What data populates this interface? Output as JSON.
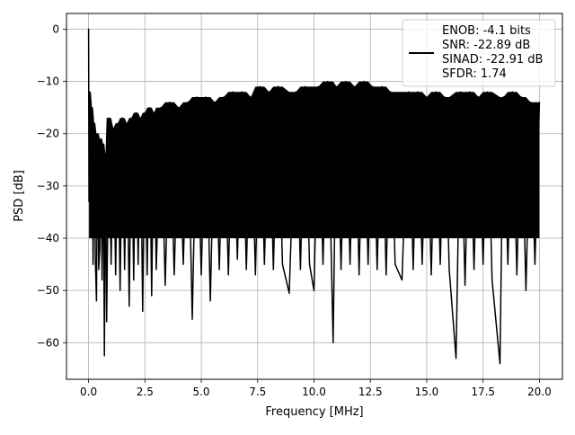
{
  "chart_data": {
    "type": "line",
    "title": "",
    "xlabel": "Frequency [MHz]",
    "ylabel": "PSD [dB]",
    "xlim": [
      -0.98,
      21.02
    ],
    "ylim": [
      -67,
      3
    ],
    "xticks": [
      0.0,
      2.5,
      5.0,
      7.5,
      10.0,
      12.5,
      15.0,
      17.5,
      20.0
    ],
    "xtick_labels": [
      "0.0",
      "2.5",
      "5.0",
      "7.5",
      "10.0",
      "12.5",
      "15.0",
      "17.5",
      "20.0"
    ],
    "yticks": [
      0,
      -10,
      -20,
      -30,
      -40,
      -50,
      -60
    ],
    "ytick_labels": [
      "0",
      "−10",
      "−20",
      "−30",
      "−40",
      "−50",
      "−60"
    ],
    "grid": true,
    "legend_position": "top-right",
    "line_color": "#000000",
    "series": [
      {
        "name": "ENOB: -4.1 bits\nSNR: -22.89 dB\nSINAD: -22.91 dB\nSFDR: 1.74",
        "note_values": "approximate reading of a dense noise spectrum; envelope and notable spikes sampled",
        "x": [
          0.0,
          0.02,
          0.05,
          0.1,
          0.15,
          0.2,
          0.25,
          0.3,
          0.35,
          0.4,
          0.45,
          0.5,
          0.55,
          0.6,
          0.65,
          0.7,
          0.75,
          0.8,
          0.9,
          1.0,
          1.1,
          1.2,
          1.3,
          1.4,
          1.5,
          1.6,
          1.7,
          1.8,
          1.9,
          2.0,
          2.1,
          2.2,
          2.3,
          2.4,
          2.5,
          2.6,
          2.7,
          2.8,
          2.9,
          3.0,
          3.2,
          3.4,
          3.6,
          3.8,
          4.0,
          4.2,
          4.4,
          4.6,
          4.8,
          5.0,
          5.2,
          5.4,
          5.6,
          5.8,
          6.0,
          6.2,
          6.4,
          6.6,
          6.8,
          7.0,
          7.2,
          7.4,
          7.6,
          7.8,
          8.0,
          8.2,
          8.4,
          8.6,
          8.9,
          9.2,
          9.4,
          9.6,
          9.8,
          10.0,
          10.2,
          10.4,
          10.6,
          10.85,
          11.0,
          11.2,
          11.4,
          11.6,
          11.8,
          12.0,
          12.2,
          12.4,
          12.6,
          12.8,
          13.0,
          13.2,
          13.4,
          13.6,
          13.9,
          14.2,
          14.4,
          14.6,
          14.8,
          15.0,
          15.2,
          15.4,
          15.6,
          15.8,
          16.0,
          16.3,
          16.5,
          16.7,
          16.9,
          17.1,
          17.3,
          17.5,
          17.7,
          17.9,
          18.25,
          18.4,
          18.6,
          18.8,
          19.0,
          19.2,
          19.4,
          19.6,
          19.8,
          20.0
        ],
        "y": [
          0.0,
          -33,
          -12,
          -38,
          -15,
          -45,
          -18,
          -44,
          -52,
          -20,
          -46,
          -42,
          -21,
          -48,
          -22,
          -62.5,
          -24,
          -56,
          -17,
          -45,
          -19,
          -47,
          -18,
          -50,
          -17,
          -46,
          -18,
          -53,
          -17,
          -48,
          -16,
          -45,
          -17,
          -54,
          -16,
          -47,
          -15,
          -51,
          -16,
          -46,
          -15,
          -49,
          -14,
          -47,
          -15,
          -45,
          -14,
          -55.5,
          -13,
          -47,
          -13,
          -52,
          -14,
          -46,
          -13,
          -47,
          -12,
          -44,
          -12,
          -46,
          -13,
          -47,
          -11,
          -45,
          -12,
          -46,
          -11,
          -45,
          -50.5,
          -12,
          -46,
          -11,
          -45,
          -50,
          -11,
          -45,
          -10,
          -60,
          -11,
          -46,
          -10,
          -45,
          -11,
          -47,
          -10,
          -45,
          -11,
          -46,
          -11,
          -47,
          -12,
          -45,
          -48,
          -12,
          -46,
          -12,
          -45,
          -13,
          -47,
          -12,
          -45,
          -13,
          -46,
          -63,
          -12,
          -49,
          -12,
          -46,
          -13,
          -45,
          -12,
          -48,
          -64,
          -13,
          -45,
          -12,
          -47,
          -13,
          -50,
          -14,
          -45,
          -14
        ]
      }
    ]
  }
}
